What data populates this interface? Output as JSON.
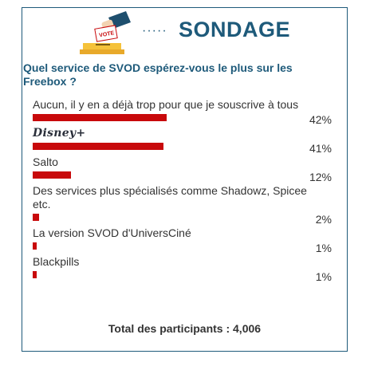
{
  "header": {
    "dots": "·····",
    "title": "SONDAGE",
    "vote_text": "VOTE"
  },
  "question": "Quel service de SVOD espérez-vous le plus sur les Freebox ?",
  "options": [
    {
      "label": "Aucun, il y en a déjà trop pour que je souscrive à tous",
      "percent_text": "42%",
      "percent": 42
    },
    {
      "label": "Disney+",
      "percent_text": "41%",
      "percent": 41
    },
    {
      "label": "Salto",
      "percent_text": "12%",
      "percent": 12
    },
    {
      "label": "Des services plus spécialisés comme Shadowz, Spicee etc.",
      "percent_text": "2%",
      "percent": 2
    },
    {
      "label": "La version SVOD d'UniversCiné",
      "percent_text": "1%",
      "percent": 1
    },
    {
      "label": "Blackpills",
      "percent_text": "1%",
      "percent": 1
    }
  ],
  "total_text": "Total des participants : 4,006",
  "colors": {
    "accent": "#1e5a7a",
    "bar": "#c8090b"
  }
}
